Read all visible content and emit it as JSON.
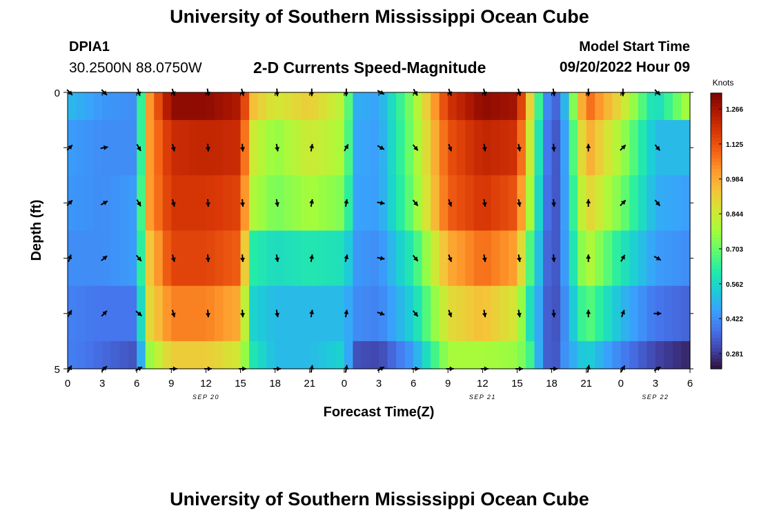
{
  "header": {
    "title": "University of Southern Mississippi Ocean Cube",
    "station_id": "DPIA1",
    "station_coords": "30.2500N  88.0750W",
    "subtitle": "2-D Currents Speed-Magnitude",
    "model_start_label": "Model Start Time",
    "model_start_value": "09/20/2022 Hour 09"
  },
  "footer": {
    "title": "University of Southern Mississippi Ocean Cube"
  },
  "chart_data": {
    "type": "heatmap",
    "title": "2-D Currents Speed-Magnitude",
    "xlabel": "Forecast Time(Z)",
    "ylabel": "Depth (ft)",
    "x_ticks": [
      "0",
      "3",
      "6",
      "9",
      "12",
      "15",
      "18",
      "21",
      "0",
      "3",
      "6",
      "9",
      "12",
      "15",
      "18",
      "21",
      "0",
      "3",
      "6"
    ],
    "x_range_hours": [
      0,
      54
    ],
    "y_ticks": [
      "0",
      "5"
    ],
    "y_range_ft": [
      0,
      5
    ],
    "date_labels": [
      {
        "text": "SEP 20",
        "hour": 12
      },
      {
        "text": "SEP 21",
        "hour": 36
      },
      {
        "text": "SEP 22",
        "hour": 51
      }
    ],
    "colorbar": {
      "label": "Knots",
      "ticks": [
        "1.266",
        "1.125",
        "0.984",
        "0.844",
        "0.703",
        "0.562",
        "0.422",
        "0.281"
      ],
      "min": 0.22,
      "max": 1.33,
      "colormap": [
        "#30123b",
        "#4145ab",
        "#4675ed",
        "#39a2fc",
        "#1bcfd4",
        "#24eca6",
        "#61fc6c",
        "#a4fc3b",
        "#d1e834",
        "#f3c63a",
        "#fe9b2d",
        "#f36315",
        "#d93806",
        "#b11901",
        "#7a0403"
      ]
    },
    "depth_rows_ft": [
      0,
      1,
      2,
      3,
      4,
      5
    ],
    "keyframes_hours": [
      0,
      3,
      6,
      7,
      9,
      12,
      15,
      16,
      18,
      21,
      24,
      25,
      27,
      30,
      33,
      36,
      39,
      40,
      41,
      42,
      43,
      45,
      48,
      51,
      54
    ],
    "speed_knots": [
      [
        0.5,
        0.44,
        0.42,
        1.0,
        1.3,
        1.3,
        1.25,
        0.95,
        0.85,
        0.92,
        0.8,
        0.48,
        0.46,
        0.75,
        1.18,
        1.3,
        1.27,
        0.95,
        0.6,
        0.3,
        0.45,
        1.1,
        0.88,
        0.55,
        0.8
      ],
      [
        0.45,
        0.42,
        0.42,
        1.0,
        1.2,
        1.22,
        1.2,
        0.85,
        0.75,
        0.85,
        0.78,
        0.47,
        0.45,
        0.74,
        1.12,
        1.22,
        1.19,
        0.88,
        0.55,
        0.28,
        0.42,
        1.0,
        0.78,
        0.5,
        0.5
      ],
      [
        0.44,
        0.42,
        0.45,
        1.0,
        1.18,
        1.18,
        1.15,
        0.8,
        0.72,
        0.78,
        0.73,
        0.46,
        0.45,
        0.72,
        1.1,
        1.18,
        1.12,
        0.82,
        0.52,
        0.28,
        0.42,
        0.92,
        0.72,
        0.48,
        0.45
      ],
      [
        0.42,
        0.42,
        0.45,
        0.92,
        1.15,
        1.15,
        1.1,
        0.62,
        0.57,
        0.6,
        0.58,
        0.44,
        0.42,
        0.62,
        0.98,
        1.08,
        1.0,
        0.7,
        0.48,
        0.28,
        0.42,
        0.82,
        0.6,
        0.45,
        0.42
      ],
      [
        0.4,
        0.38,
        0.38,
        0.88,
        1.05,
        1.05,
        0.98,
        0.55,
        0.5,
        0.5,
        0.5,
        0.42,
        0.4,
        0.55,
        0.88,
        0.95,
        0.85,
        0.6,
        0.45,
        0.28,
        0.4,
        0.7,
        0.5,
        0.38,
        0.35
      ],
      [
        0.4,
        0.36,
        0.32,
        0.75,
        0.92,
        0.92,
        0.85,
        0.6,
        0.5,
        0.5,
        0.55,
        0.32,
        0.3,
        0.45,
        0.78,
        0.78,
        0.76,
        0.68,
        0.45,
        0.28,
        0.42,
        0.55,
        0.4,
        0.3,
        0.25
      ]
    ],
    "arrow_hours": [
      0,
      3,
      6,
      9,
      12,
      15,
      18,
      21,
      24,
      27,
      30,
      33,
      36,
      39,
      42,
      45,
      48,
      51
    ],
    "arrow_depths_ft": [
      0,
      1,
      2,
      3,
      4,
      5
    ],
    "arrow_direction_deg": [
      [
        135,
        135,
        165,
        160,
        170,
        165,
        175,
        180,
        180,
        120,
        150,
        160,
        165,
        165,
        170,
        180,
        180,
        135
      ],
      [
        45,
        80,
        150,
        165,
        175,
        175,
        170,
        10,
        30,
        120,
        140,
        160,
        170,
        170,
        175,
        0,
        45,
        140
      ],
      [
        45,
        60,
        150,
        165,
        175,
        175,
        170,
        10,
        10,
        100,
        140,
        160,
        170,
        170,
        175,
        0,
        45,
        140
      ],
      [
        20,
        50,
        140,
        165,
        175,
        175,
        170,
        10,
        15,
        100,
        140,
        160,
        170,
        170,
        175,
        0,
        30,
        120
      ],
      [
        30,
        45,
        130,
        165,
        175,
        175,
        170,
        10,
        10,
        110,
        140,
        160,
        170,
        170,
        175,
        0,
        20,
        90
      ],
      [
        30,
        45,
        60,
        90,
        90,
        90,
        90,
        10,
        10,
        60,
        90,
        90,
        90,
        90,
        90,
        10,
        30,
        60
      ]
    ]
  }
}
